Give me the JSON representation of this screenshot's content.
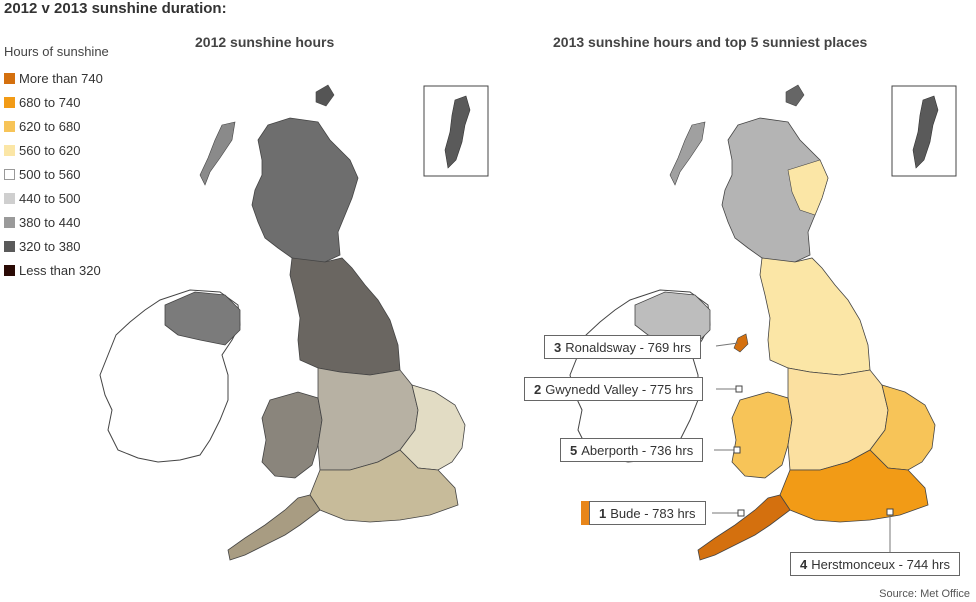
{
  "title": "2012 v 2013 sunshine duration:",
  "legend": {
    "title": "Hours of sunshine",
    "items": [
      {
        "label": "More than 740",
        "color": "#d4700e"
      },
      {
        "label": "680 to 740",
        "color": "#f29b16"
      },
      {
        "label": "620 to 680",
        "color": "#f7c458"
      },
      {
        "label": "560 to 620",
        "color": "#fbe6a6"
      },
      {
        "label": "500 to 560",
        "color": "#ffffff"
      },
      {
        "label": "440 to 500",
        "color": "#cfcfcf"
      },
      {
        "label": "380 to 440",
        "color": "#9a9a9a"
      },
      {
        "label": "320 to 380",
        "color": "#5a5a5a"
      },
      {
        "label": "Less than 320",
        "color": "#2a0a05"
      }
    ]
  },
  "map_2012": {
    "title": "2012 sunshine hours"
  },
  "map_2013": {
    "title": "2013 sunshine hours and top 5 sunniest places"
  },
  "callouts": [
    {
      "rank": "3",
      "text": "Ronaldsway - 769 hrs"
    },
    {
      "rank": "2",
      "text": "Gwynedd Valley - 775 hrs"
    },
    {
      "rank": "5",
      "text": "Aberporth - 736 hrs"
    },
    {
      "rank": "1",
      "text": "Bude - 783 hrs"
    },
    {
      "rank": "4",
      "text": "Herstmonceux - 744 hrs"
    }
  ],
  "source": "Source: Met Office",
  "colors": {
    "bar_accent": "#e8861a",
    "outline": "#333333",
    "land_2012": "#8f8a80"
  }
}
